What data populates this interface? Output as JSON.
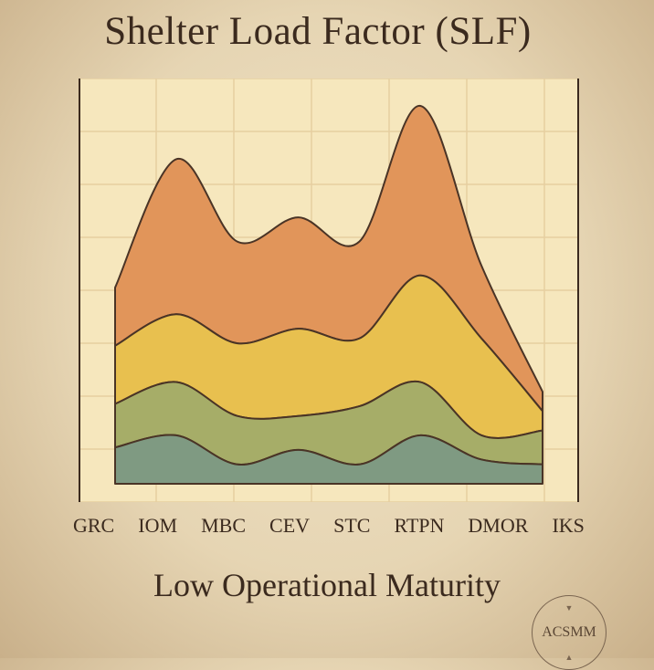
{
  "chart_data": {
    "type": "area",
    "title": "Shelter Load Factor (SLF)",
    "subtitle": "Low Operational Maturity",
    "categories": [
      "GRC",
      "IOM",
      "MBC",
      "CEV",
      "STC",
      "RTPN",
      "DMOR",
      "IKS"
    ],
    "stacked": true,
    "grid": true,
    "colors": [
      "#7f9a82",
      "#a6ad68",
      "#e8c04f",
      "#e1955a"
    ],
    "series": [
      {
        "values": [
          15,
          20,
          8,
          14,
          8,
          20,
          10,
          8
        ]
      },
      {
        "values": [
          18,
          22,
          20,
          14,
          24,
          22,
          10,
          14
        ]
      },
      {
        "values": [
          24,
          28,
          30,
          36,
          28,
          44,
          40,
          8
        ]
      },
      {
        "values": [
          24,
          64,
          42,
          46,
          40,
          70,
          30,
          8
        ]
      }
    ]
  },
  "seal": {
    "text": "ACSMM"
  }
}
